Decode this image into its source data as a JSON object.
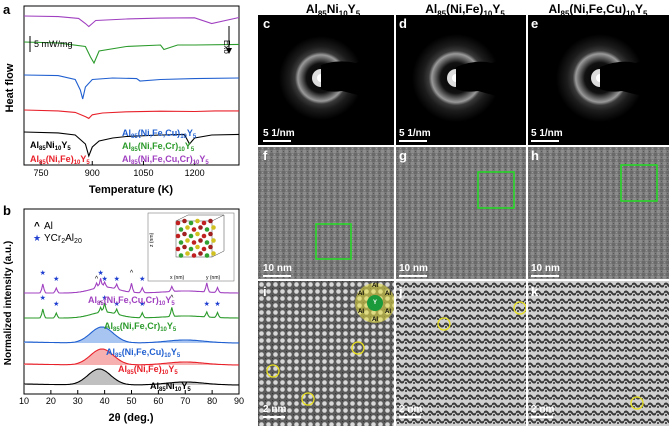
{
  "panel_letters": {
    "a": "a",
    "b": "b",
    "c": "c",
    "d": "d",
    "e": "e",
    "f": "f",
    "g": "g",
    "h": "h",
    "i": "i",
    "j": "j",
    "k": "k"
  },
  "column_titles": [
    {
      "base": "Al",
      "s1": "85",
      "mid": "Ni",
      "s2": "10",
      "end": "Y",
      "s3": "5"
    },
    {
      "base": "Al",
      "s1": "85",
      "mid": "(Ni,Fe)",
      "s2": "10",
      "end": "Y",
      "s3": "5"
    },
    {
      "base": "Al",
      "s1": "85",
      "mid": "(Ni,Fe,Cu)",
      "s2": "10",
      "end": "Y",
      "s3": "5"
    }
  ],
  "chart_data": [
    {
      "type": "line",
      "panel": "a",
      "xlabel": "Temperature (K)",
      "ylabel": "Heat flow",
      "xlim": [
        700,
        1330
      ],
      "xticks": [
        750,
        900,
        1050,
        1200
      ],
      "scale_note": "5 mW/mg",
      "exo_note": "Exo",
      "legend": [
        {
          "name": "Al85Ni10Y5",
          "main": "Al",
          "s1": "85",
          "mid": "Ni",
          "s2": "10",
          "end": "Y",
          "s3": "5",
          "color": "#000000"
        },
        {
          "name": "Al85(Ni,Fe)10Y5",
          "main": "Al",
          "s1": "85",
          "mid": "(Ni,Fe)",
          "s2": "10",
          "end": "Y",
          "s3": "5",
          "color": "#e8202a"
        },
        {
          "name": "Al85(Ni,Fe,Cu)10Y5",
          "main": "Al",
          "s1": "85",
          "mid": "(Ni,Fe,Cu)",
          "s2": "10",
          "end": "Y",
          "s3": "5",
          "color": "#1f5fd0"
        },
        {
          "name": "Al85(Ni,Fe,Cr)10Y5",
          "main": "Al",
          "s1": "85",
          "mid": "(Ni,Fe,Cr)",
          "s2": "10",
          "end": "Y",
          "s3": "5",
          "color": "#2a9a2a"
        },
        {
          "name": "Al85(Ni,Fe,Cu,Cr)10Y5",
          "main": "Al",
          "s1": "85",
          "mid": "(Ni,Fe,Cu,Cr)",
          "s2": "10",
          "end": "Y",
          "s3": "5",
          "color": "#a040c0"
        }
      ],
      "series": [
        {
          "name": "Al85Ni10Y5",
          "color": "#000000",
          "offset": 0,
          "x": [
            700,
            800,
            850,
            880,
            890,
            900,
            920,
            960,
            1000,
            1100,
            1170,
            1185,
            1200,
            1250,
            1330
          ],
          "y": [
            0,
            -0.3,
            -1,
            -4,
            -8,
            -5,
            -3,
            -2,
            -1.5,
            -1,
            -0.8,
            -4,
            -2,
            -1,
            -0.8
          ]
        },
        {
          "name": "Al85(Ni,Fe)10Y5",
          "color": "#e8202a",
          "offset": 1,
          "x": [
            700,
            800,
            850,
            880,
            890,
            900,
            930,
            1000,
            1100,
            1200,
            1260,
            1330
          ],
          "y": [
            0,
            -0.3,
            -0.8,
            -2.2,
            -2.8,
            -1.6,
            -1,
            -0.6,
            -0.4,
            -0.5,
            -0.3,
            -0.3
          ]
        },
        {
          "name": "Al85(Ni,Fe,Cu)10Y5",
          "color": "#1f5fd0",
          "offset": 2,
          "x": [
            700,
            800,
            850,
            865,
            872,
            880,
            900,
            960,
            1030,
            1040,
            1100,
            1200,
            1330
          ],
          "y": [
            0,
            -0.2,
            -1.5,
            -5,
            -8,
            -4,
            -1.5,
            -1,
            -1.2,
            -2,
            -1.5,
            -1.2,
            -1
          ]
        },
        {
          "name": "Al85(Ni,Fe,Cr)10Y5",
          "color": "#2a9a2a",
          "offset": 3,
          "x": [
            700,
            800,
            880,
            895,
            905,
            920,
            1000,
            1100,
            1110,
            1150,
            1200,
            1330
          ],
          "y": [
            0,
            -0.3,
            -1.5,
            -5,
            -7,
            -3,
            -1.5,
            -1,
            -2.5,
            -1,
            -1,
            -0.8
          ]
        },
        {
          "name": "Al85(Ni,Fe,Cu,Cr)10Y5",
          "color": "#a040c0",
          "offset": 4,
          "x": [
            700,
            800,
            860,
            880,
            890,
            910,
            1000,
            1100,
            1200,
            1250,
            1330
          ],
          "y": [
            0,
            -0.2,
            -0.8,
            -2.5,
            -3.5,
            -1.5,
            -1,
            -0.7,
            -0.6,
            -2.5,
            -0.5
          ]
        }
      ]
    },
    {
      "type": "line",
      "panel": "b",
      "xlabel": "2θ (deg.)",
      "ylabel": "Normalized intensity (a.u.)",
      "xlim": [
        10,
        90
      ],
      "xticks": [
        10,
        20,
        30,
        40,
        50,
        60,
        70,
        80,
        90
      ],
      "markers_legend": [
        {
          "symbol": "^",
          "label": "Al",
          "color": "#000000"
        },
        {
          "symbol": "★",
          "label_main": "YCr",
          "s1": "2",
          "label_end": "Al",
          "s2": "20",
          "label": "YCr2Al20",
          "color": "#1f3fd0"
        }
      ],
      "legend": [
        {
          "main": "Al",
          "s1": "85",
          "mid": "(Ni,Fe,Cu,Cr)",
          "s2": "10",
          "end": "Y",
          "s3": "5",
          "color": "#a040c0"
        },
        {
          "main": "Al",
          "s1": "85",
          "mid": "(Ni,Fe,Cr)",
          "s2": "10",
          "end": "Y",
          "s3": "5",
          "color": "#2a9a2a"
        },
        {
          "main": "Al",
          "s1": "85",
          "mid": "(Ni,Fe,Cu)",
          "s2": "10",
          "end": "Y",
          "s3": "5",
          "color": "#1f5fd0"
        },
        {
          "main": "Al",
          "s1": "85",
          "mid": "(Ni,Fe)",
          "s2": "10",
          "end": "Y",
          "s3": "5",
          "color": "#e8202a"
        },
        {
          "main": "Al",
          "s1": "85",
          "mid": "Ni",
          "s2": "10",
          "end": "Y",
          "s3": "5",
          "color": "#000000"
        }
      ],
      "series": [
        {
          "name": "Al85Ni10Y5",
          "color": "#000000",
          "offset": 0,
          "fill": "#c0c0c0",
          "amorphous": true,
          "peak": 38
        },
        {
          "name": "Al85(Ni,Fe)10Y5",
          "color": "#e8202a",
          "offset": 1,
          "fill": "#f6b0b0",
          "amorphous": true,
          "peak": 39
        },
        {
          "name": "Al85(Ni,Fe,Cu)10Y5",
          "color": "#1f5fd0",
          "offset": 2,
          "fill": "#a8c4f0",
          "amorphous": true,
          "peak": 39
        },
        {
          "name": "Al85(Ni,Fe,Cr)10Y5",
          "color": "#2a9a2a",
          "offset": 3,
          "fill": "none",
          "amorphous": false,
          "peaks": [
            17,
            22,
            38.5,
            40,
            44.5,
            54,
            65,
            78,
            82
          ]
        },
        {
          "name": "Al85(Ni,Fe,Cu,Cr)10Y5",
          "color": "#a040c0",
          "offset": 4,
          "fill": "none",
          "amorphous": false,
          "peaks": [
            17,
            22,
            37,
            38.5,
            40,
            44.5,
            50,
            54,
            65,
            78,
            82
          ]
        }
      ],
      "inset": {
        "xlabel": "x (nm)",
        "ylabel": "z (nm)",
        "ylabel2": "y (nm)",
        "zticks": [
          "0",
          "0.5",
          "1",
          "1.5"
        ],
        "xticks": [
          "0",
          "0.5",
          "1"
        ],
        "yticks": [
          "0",
          "0.5",
          "1",
          "1.5"
        ]
      }
    }
  ],
  "images": {
    "c": {
      "scale": "5 1/nm"
    },
    "d": {
      "scale": "5 1/nm"
    },
    "e": {
      "scale": "5 1/nm"
    },
    "f": {
      "scale": "10 nm"
    },
    "g": {
      "scale": "10 nm"
    },
    "h": {
      "scale": "10 nm"
    },
    "i": {
      "scale": "2 nm",
      "cluster": {
        "center": "Y",
        "ring": [
          "Al",
          "Al",
          "Al",
          "Al",
          "Al",
          "Al"
        ]
      }
    },
    "j": {
      "scale": "2 nm"
    },
    "k": {
      "scale": "2 nm"
    }
  }
}
